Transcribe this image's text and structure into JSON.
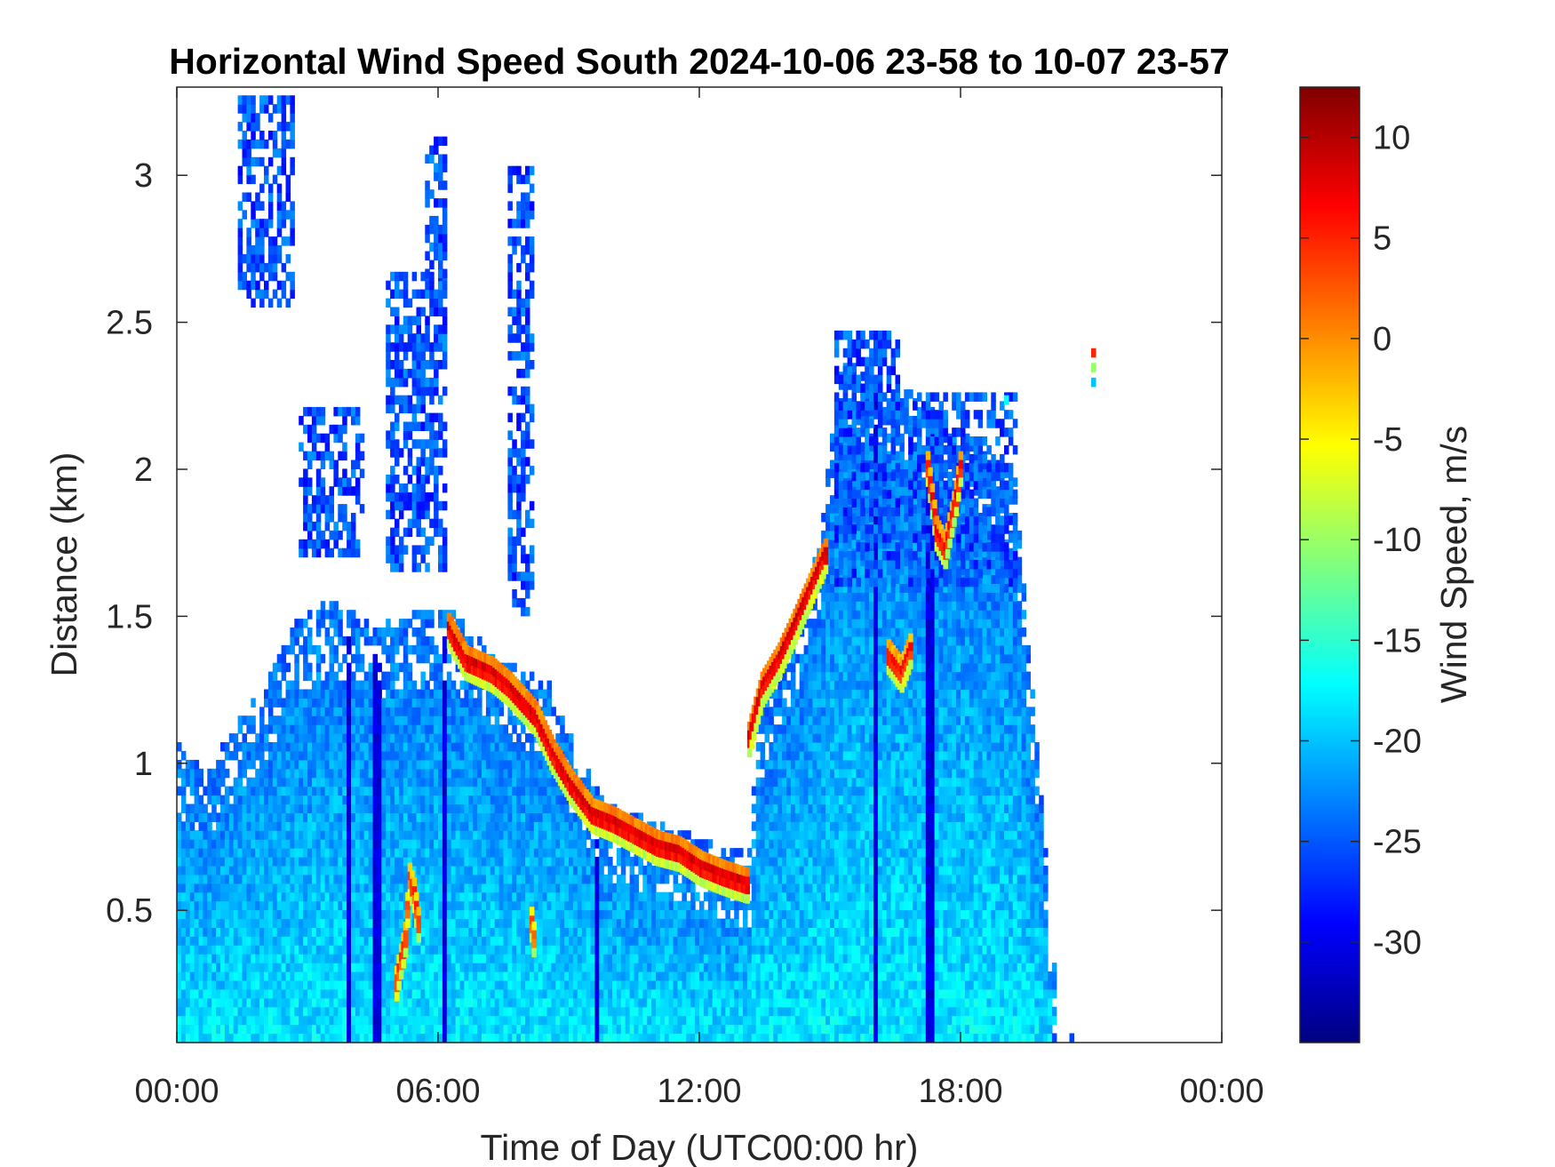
{
  "chart_data": {
    "type": "heatmap",
    "title": "Horizontal Wind Speed South 2024-10-06 23-58 to 10-07 23-57",
    "xlabel": "Time of Day (UTC00:00 hr)",
    "ylabel": "Distance (km)",
    "colorbar_label": "Wind Speed, m/s",
    "colormap": "jet",
    "x_unit": "hours",
    "xlim": [
      0,
      24
    ],
    "ylim": [
      0.05,
      3.3
    ],
    "clim": [
      -35,
      12.5
    ],
    "x_ticks": [
      0,
      6,
      12,
      18,
      24
    ],
    "x_tick_labels": [
      "00:00",
      "06:00",
      "12:00",
      "18:00",
      "00:00"
    ],
    "y_ticks": [
      0.5,
      1,
      1.5,
      2,
      2.5,
      3
    ],
    "y_tick_labels": [
      "0.5",
      "1",
      "1.5",
      "2",
      "2.5",
      "3"
    ],
    "c_ticks": [
      -30,
      -25,
      -20,
      -15,
      -10,
      -5,
      0,
      5,
      10
    ],
    "c_tick_labels": [
      "-30",
      "-25",
      "-20",
      "-15",
      "-10",
      "-5",
      "0",
      "5",
      "10"
    ],
    "grid": false,
    "time_step_hours": 0.1,
    "range_step_km": 0.03,
    "data_top_km": [
      [
        0,
        1.05
      ],
      [
        0.6,
        0.95
      ],
      [
        1.2,
        1.1
      ],
      [
        2.0,
        1.25
      ],
      [
        2.6,
        1.45
      ],
      [
        3.5,
        1.55
      ],
      [
        4.5,
        1.45
      ],
      [
        5.5,
        1.5
      ],
      [
        6.3,
        1.5
      ],
      [
        7.2,
        1.35
      ],
      [
        8.5,
        1.25
      ],
      [
        9.2,
        1.0
      ],
      [
        9.8,
        0.85
      ],
      [
        11.0,
        0.78
      ],
      [
        12.5,
        0.7
      ],
      [
        13.1,
        0.68
      ],
      [
        13.3,
        1.15
      ],
      [
        14.0,
        1.4
      ],
      [
        14.7,
        1.75
      ],
      [
        15.2,
        2.35
      ],
      [
        16.3,
        2.3
      ],
      [
        17.2,
        2.2
      ],
      [
        18.5,
        2.05
      ],
      [
        19.2,
        1.95
      ],
      [
        19.6,
        1.25
      ],
      [
        19.9,
        0.7
      ],
      [
        20.1,
        0.3
      ],
      [
        20.2,
        0.05
      ]
    ],
    "upper_patches_km": [
      {
        "x": [
          1.4,
          2.7
        ],
        "y": [
          2.55,
          3.25
        ]
      },
      {
        "x": [
          2.8,
          4.3
        ],
        "y": [
          1.7,
          2.2
        ]
      },
      {
        "x": [
          4.8,
          6.15
        ],
        "y": [
          1.65,
          2.65
        ]
      },
      {
        "x": [
          5.7,
          6.15
        ],
        "y": [
          2.65,
          3.1
        ]
      },
      {
        "x": [
          7.6,
          8.1
        ],
        "y": [
          1.5,
          3.0
        ]
      },
      {
        "x": [
          15.1,
          16.6
        ],
        "y": [
          1.6,
          2.45
        ]
      },
      {
        "x": [
          16.8,
          19.3
        ],
        "y": [
          1.6,
          2.25
        ]
      }
    ],
    "lines_km": [
      {
        "name": "",
        "value_ms": 8,
        "points": [
          [
            6.2,
            1.45
          ],
          [
            6.6,
            1.34
          ],
          [
            7.2,
            1.3
          ],
          [
            7.6,
            1.25
          ],
          [
            8.2,
            1.15
          ],
          [
            8.6,
            1.02
          ],
          [
            9.0,
            0.92
          ],
          [
            9.5,
            0.82
          ],
          [
            10.0,
            0.79
          ],
          [
            10.5,
            0.75
          ],
          [
            11.0,
            0.71
          ],
          [
            11.5,
            0.69
          ],
          [
            12.0,
            0.64
          ],
          [
            12.5,
            0.61
          ],
          [
            13.1,
            0.58
          ]
        ]
      },
      {
        "name": "",
        "value_ms": 8,
        "points": [
          [
            13.1,
            1.08
          ],
          [
            13.4,
            1.25
          ],
          [
            13.8,
            1.35
          ],
          [
            14.2,
            1.48
          ],
          [
            14.6,
            1.62
          ],
          [
            14.9,
            1.72
          ]
        ]
      },
      {
        "name": "",
        "value_ms": 6,
        "points": [
          [
            16.3,
            1.36
          ],
          [
            16.6,
            1.3
          ],
          [
            16.85,
            1.4
          ]
        ]
      },
      {
        "name": "",
        "value_ms": 6,
        "points": [
          [
            17.2,
            2.0
          ],
          [
            17.4,
            1.78
          ],
          [
            17.6,
            1.72
          ],
          [
            17.85,
            1.9
          ],
          [
            18.0,
            2.05
          ]
        ]
      },
      {
        "name": "",
        "value_ms": 4,
        "points": [
          [
            5.0,
            0.25
          ],
          [
            5.2,
            0.4
          ],
          [
            5.3,
            0.6
          ],
          [
            5.4,
            0.55
          ],
          [
            5.5,
            0.45
          ]
        ]
      },
      {
        "name": "",
        "value_ms": 2,
        "points": [
          [
            8.1,
            0.45
          ],
          [
            8.2,
            0.35
          ]
        ]
      }
    ],
    "dark_stripes_h": [
      3.9,
      4.55,
      4.62,
      6.1,
      9.6,
      16.0,
      17.25
    ],
    "isolated_points": [
      {
        "x": 21.0,
        "y": 2.38,
        "value_ms": 5
      },
      {
        "x": 21.0,
        "y": 2.33,
        "value_ms": -10
      },
      {
        "x": 21.0,
        "y": 2.28,
        "value_ms": -20
      },
      {
        "x": 19.0,
        "y": 2.22,
        "value_ms": -17
      },
      {
        "x": 20.1,
        "y": 0.05,
        "value_ms": -26
      },
      {
        "x": 20.5,
        "y": 0.05,
        "value_ms": -26
      }
    ]
  }
}
